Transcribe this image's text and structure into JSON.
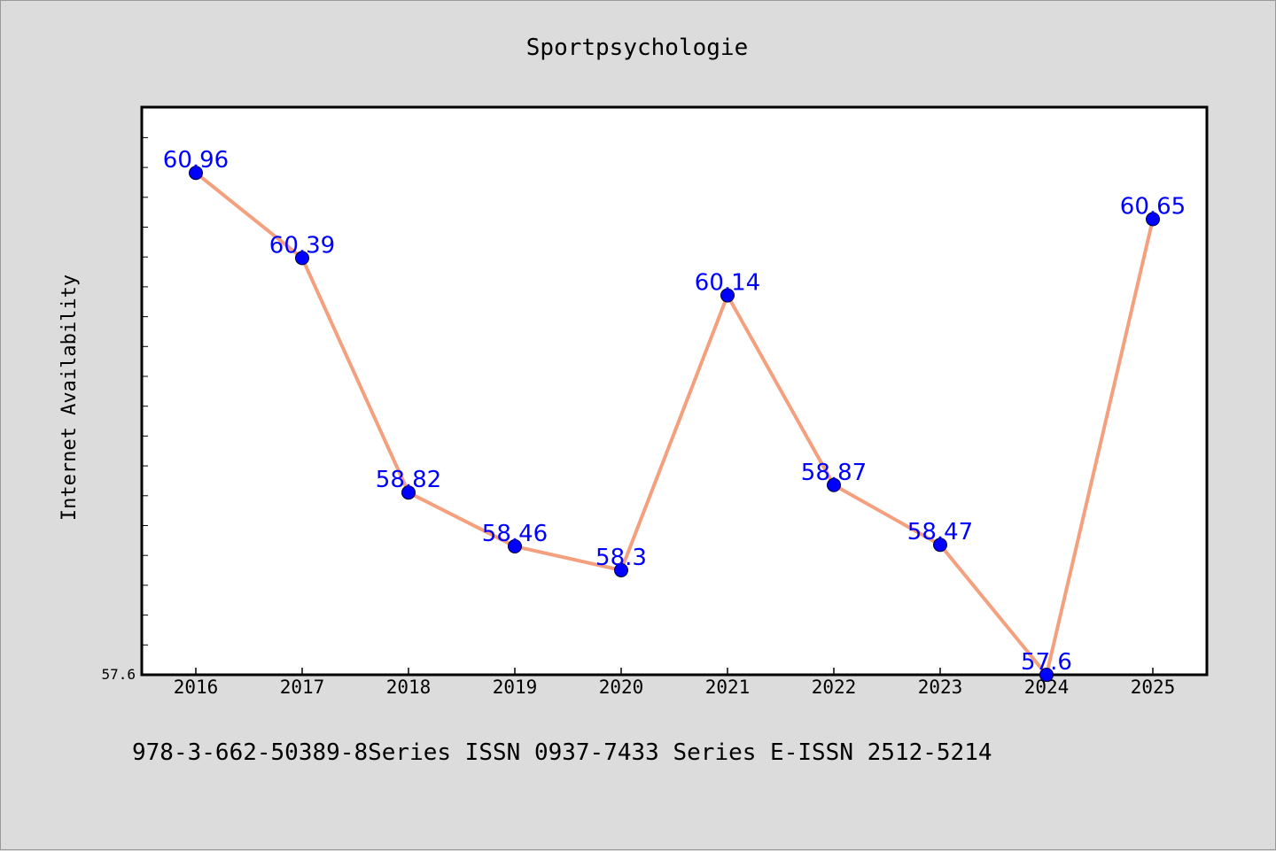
{
  "chart_data": {
    "type": "line",
    "title": "Sportpsychologie",
    "ylabel": "Internet Availability",
    "xlabel": "",
    "categories": [
      "2016",
      "2017",
      "2018",
      "2019",
      "2020",
      "2021",
      "2022",
      "2023",
      "2024",
      "2025"
    ],
    "values": [
      60.96,
      60.39,
      58.82,
      58.46,
      58.3,
      60.14,
      58.87,
      58.47,
      57.6,
      60.65
    ],
    "data_labels": [
      "60.96",
      "60.39",
      "58.82",
      "58.46",
      "58.3",
      "60.14",
      "58.87",
      "58.47",
      "57.6",
      "60.65"
    ],
    "y_tick_labels": [
      "57.6"
    ],
    "ylim": [
      57.6,
      61.4
    ],
    "grid": false,
    "line_color": "#f4a07e",
    "marker_color": "#0000ff",
    "label_color": "#0000ff"
  },
  "footer": "978-3-662-50389-8Series ISSN 0937-7433 Series E-ISSN 2512-5214"
}
